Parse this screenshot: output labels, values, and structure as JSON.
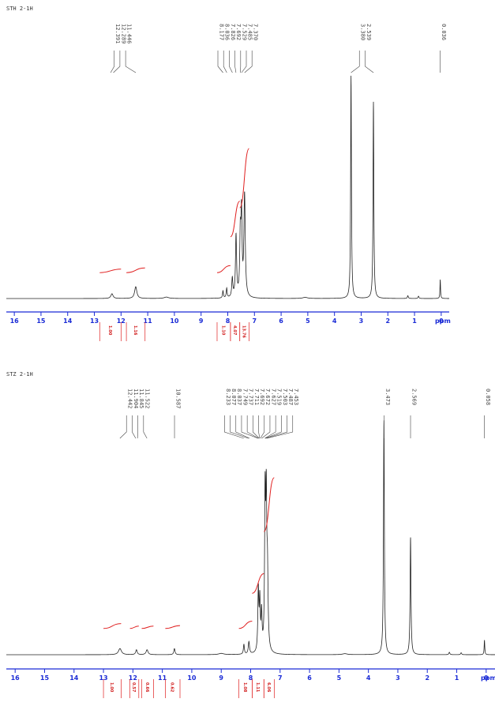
{
  "colors": {
    "spectrum": "#222222",
    "axis": "#1a2bd6",
    "integral": "#e02020",
    "label": "#444444"
  },
  "chart_data": [
    {
      "type": "line",
      "title": "STH 2-1H",
      "xlabel": "ppm",
      "xlim": [
        16.3,
        -0.3
      ],
      "xticks": [
        16,
        15,
        14,
        13,
        12,
        11,
        10,
        9,
        8,
        7,
        6,
        5,
        4,
        3,
        2,
        1,
        0
      ],
      "peak_labels": [
        "12.391",
        "12.289",
        "11.446",
        "8.177",
        "8.036",
        "7.826",
        "7.692",
        "7.529",
        "7.485",
        "7.370",
        "3.380",
        "2.539",
        "0.036"
      ],
      "peaks": [
        {
          "ppm": 12.34,
          "height": 0.02,
          "width": 0.1
        },
        {
          "ppm": 11.45,
          "height": 0.05,
          "width": 0.1
        },
        {
          "ppm": 10.3,
          "height": 0.006,
          "width": 0.2
        },
        {
          "ppm": 8.18,
          "height": 0.03,
          "width": 0.04
        },
        {
          "ppm": 8.04,
          "height": 0.04,
          "width": 0.04
        },
        {
          "ppm": 7.83,
          "height": 0.08,
          "width": 0.05
        },
        {
          "ppm": 7.69,
          "height": 0.26,
          "width": 0.05
        },
        {
          "ppm": 7.53,
          "height": 0.24,
          "width": 0.05
        },
        {
          "ppm": 7.485,
          "height": 0.33,
          "width": 0.05
        },
        {
          "ppm": 7.37,
          "height": 0.43,
          "width": 0.06
        },
        {
          "ppm": 5.1,
          "height": 0.005,
          "width": 0.2
        },
        {
          "ppm": 3.38,
          "height": 0.94,
          "width": 0.035
        },
        {
          "ppm": 2.54,
          "height": 0.83,
          "width": 0.035
        },
        {
          "ppm": 1.25,
          "height": 0.012,
          "width": 0.04
        },
        {
          "ppm": 0.85,
          "height": 0.01,
          "width": 0.04
        },
        {
          "ppm": 0.036,
          "height": 0.08,
          "width": 0.025
        }
      ],
      "integrals": [
        {
          "from": 12.8,
          "to": 12.0,
          "value": "1.00",
          "rise": 0.015
        },
        {
          "from": 11.8,
          "to": 11.1,
          "value": "1.16",
          "rise": 0.02
        },
        {
          "from": 8.4,
          "to": 7.9,
          "value": "1.10",
          "rise": 0.03
        },
        {
          "from": 7.9,
          "to": 7.55,
          "value": "4.07",
          "rise": 0.15
        },
        {
          "from": 7.55,
          "to": 7.2,
          "value": "13.76",
          "rise": 0.25
        }
      ]
    },
    {
      "type": "line",
      "title": "STZ 2-1H",
      "xlabel": "ppm",
      "xlim": [
        16.3,
        -0.3
      ],
      "xticks": [
        16,
        15,
        14,
        13,
        12,
        11,
        10,
        9,
        8,
        7,
        6,
        5,
        4,
        3,
        2,
        1,
        0
      ],
      "peak_labels": [
        "12.442",
        "11.904",
        "11.845",
        "11.522",
        "10.587",
        "8.233",
        "8.077",
        "8.037",
        "7.749",
        "7.737",
        "7.711",
        "7.692",
        "7.672",
        "7.627",
        "7.519",
        "7.503",
        "7.487",
        "7.453",
        "3.473",
        "2.569",
        "0.058"
      ],
      "peaks": [
        {
          "ppm": 12.44,
          "height": 0.025,
          "width": 0.12
        },
        {
          "ppm": 11.88,
          "height": 0.02,
          "width": 0.06
        },
        {
          "ppm": 11.52,
          "height": 0.02,
          "width": 0.08
        },
        {
          "ppm": 10.59,
          "height": 0.025,
          "width": 0.05
        },
        {
          "ppm": 9.0,
          "height": 0.005,
          "width": 0.2
        },
        {
          "ppm": 8.23,
          "height": 0.04,
          "width": 0.04
        },
        {
          "ppm": 8.06,
          "height": 0.05,
          "width": 0.05
        },
        {
          "ppm": 7.74,
          "height": 0.25,
          "width": 0.04
        },
        {
          "ppm": 7.69,
          "height": 0.2,
          "width": 0.04
        },
        {
          "ppm": 7.63,
          "height": 0.15,
          "width": 0.04
        },
        {
          "ppm": 7.51,
          "height": 0.6,
          "width": 0.04
        },
        {
          "ppm": 7.47,
          "height": 0.55,
          "width": 0.04
        },
        {
          "ppm": 7.43,
          "height": 0.3,
          "width": 0.05
        },
        {
          "ppm": 4.8,
          "height": 0.004,
          "width": 0.2
        },
        {
          "ppm": 3.473,
          "height": 0.96,
          "width": 0.035
        },
        {
          "ppm": 2.569,
          "height": 0.48,
          "width": 0.035
        },
        {
          "ppm": 1.25,
          "height": 0.01,
          "width": 0.04
        },
        {
          "ppm": 0.85,
          "height": 0.008,
          "width": 0.04
        },
        {
          "ppm": 0.058,
          "height": 0.06,
          "width": 0.025
        }
      ],
      "integrals": [
        {
          "from": 13.0,
          "to": 12.4,
          "value": "1.00",
          "rise": 0.02
        },
        {
          "from": 12.1,
          "to": 11.8,
          "value": "0.57",
          "rise": 0.01
        },
        {
          "from": 11.7,
          "to": 11.3,
          "value": "0.66",
          "rise": 0.01
        },
        {
          "from": 10.9,
          "to": 10.4,
          "value": "0.62",
          "rise": 0.012
        },
        {
          "from": 8.4,
          "to": 7.95,
          "value": "1.08",
          "rise": 0.03
        },
        {
          "from": 7.95,
          "to": 7.55,
          "value": "1.11",
          "rise": 0.08
        },
        {
          "from": 7.55,
          "to": 7.2,
          "value": "6.06",
          "rise": 0.22
        }
      ]
    }
  ]
}
